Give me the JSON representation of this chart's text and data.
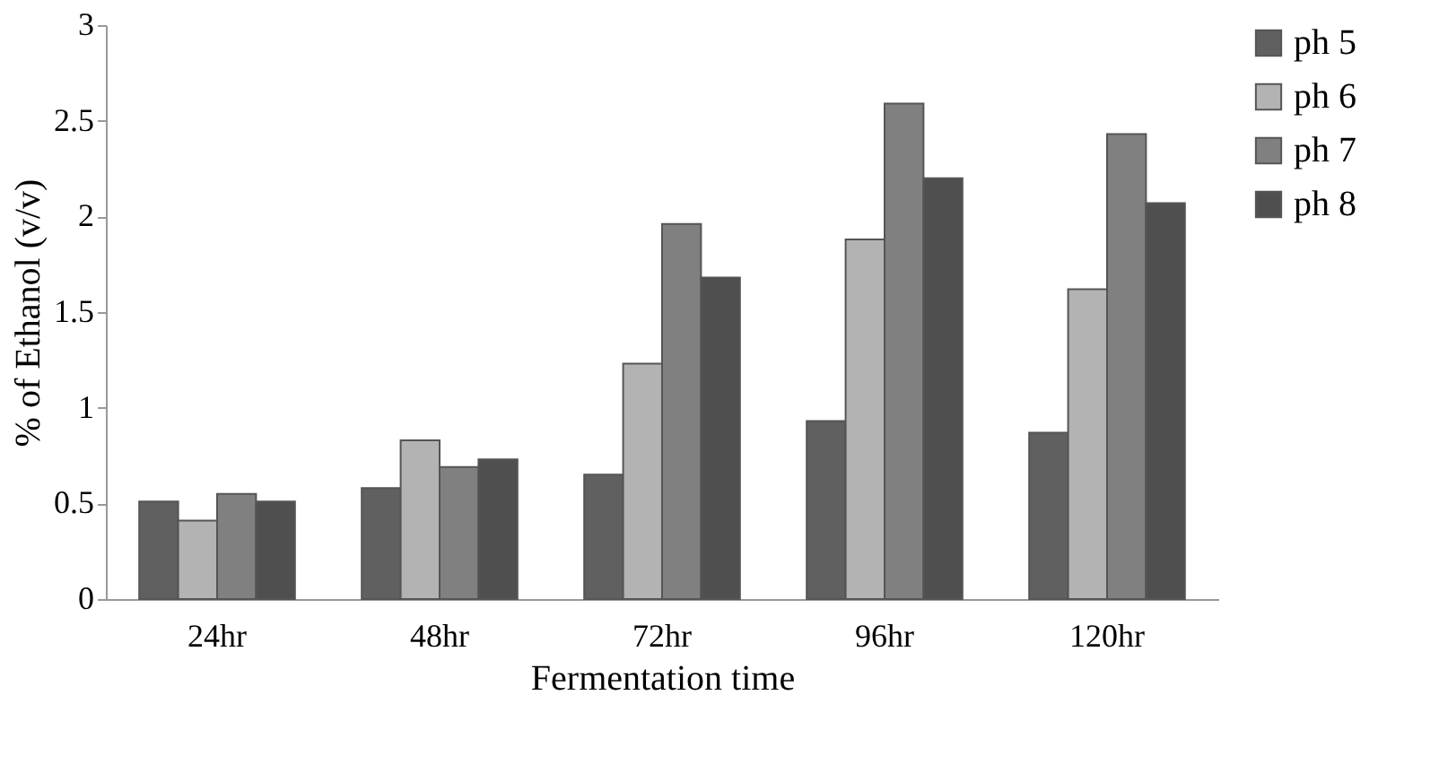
{
  "chart_data": {
    "type": "bar",
    "xlabel": "Fermentation time",
    "ylabel": "% of Ethanol (v/v)",
    "categories": [
      "24hr",
      "48hr",
      "72hr",
      "96hr",
      "120hr"
    ],
    "series": [
      {
        "name": "ph 5",
        "color": "#606060",
        "values": [
          0.51,
          0.58,
          0.65,
          0.93,
          0.87
        ]
      },
      {
        "name": "ph 6",
        "color": "#b3b3b3",
        "values": [
          0.41,
          0.83,
          1.23,
          1.88,
          1.62
        ]
      },
      {
        "name": "ph 7",
        "color": "#808080",
        "values": [
          0.55,
          0.69,
          1.96,
          2.59,
          2.43
        ]
      },
      {
        "name": "ph 8",
        "color": "#4f4f4f",
        "values": [
          0.51,
          0.73,
          1.68,
          2.2,
          2.07
        ]
      }
    ],
    "ylim": [
      0,
      3
    ],
    "yticks": [
      0,
      0.5,
      1,
      1.5,
      2,
      2.5,
      3
    ],
    "grid": false,
    "legend": "right"
  }
}
